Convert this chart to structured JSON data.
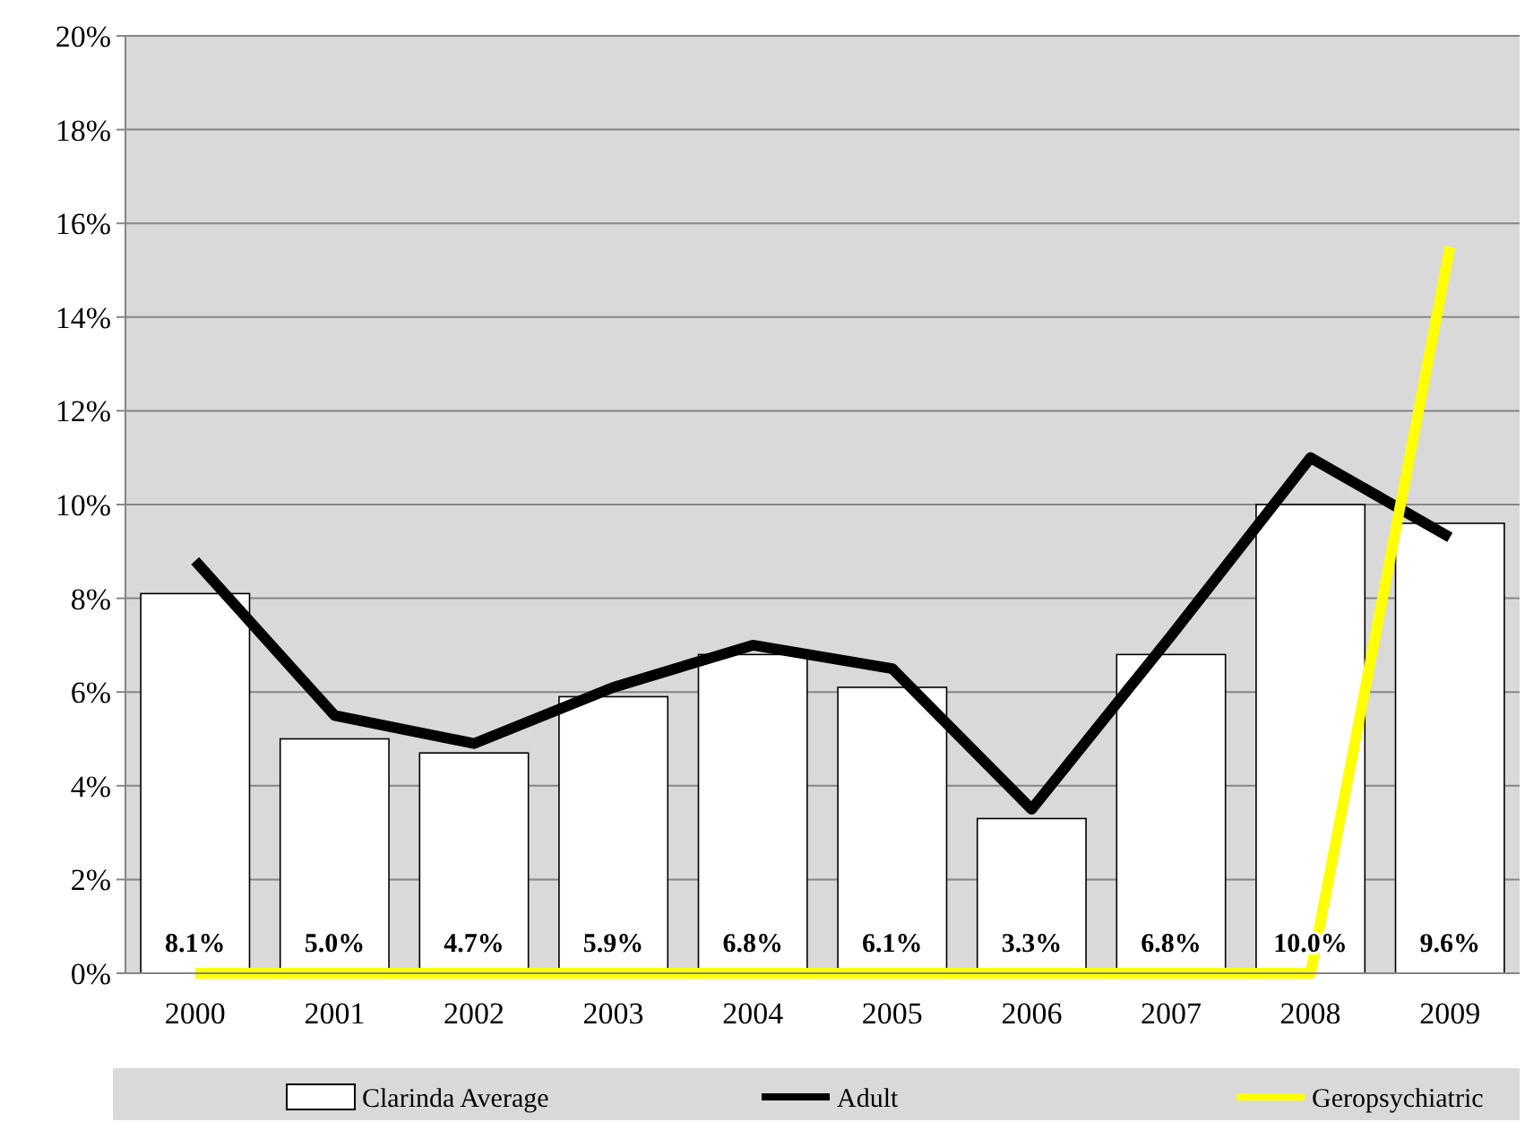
{
  "chart_data": {
    "type": "bar",
    "categories": [
      "2000",
      "2001",
      "2002",
      "2003",
      "2004",
      "2005",
      "2006",
      "2007",
      "2008",
      "2009"
    ],
    "series": [
      {
        "name": "Clarinda Average",
        "color": "#ffffff",
        "values": [
          8.1,
          5.0,
          4.7,
          5.9,
          6.8,
          6.1,
          3.3,
          6.8,
          10.0,
          9.6
        ],
        "value_labels": [
          "8.1%",
          "5.0%",
          "4.7%",
          "5.9%",
          "6.8%",
          "6.1%",
          "3.3%",
          "6.8%",
          "10.0%",
          "9.6%"
        ]
      },
      {
        "name": "Adult",
        "type": "line",
        "color": "#000000",
        "values": [
          8.8,
          5.5,
          4.9,
          6.1,
          7.0,
          6.5,
          3.5,
          7.2,
          11.0,
          9.3
        ]
      },
      {
        "name": "Geropsychiatric",
        "type": "line",
        "color": "#ffff00",
        "values": [
          0,
          0,
          0,
          0,
          0,
          0,
          0,
          0,
          0,
          15.5
        ]
      }
    ],
    "ylim": [
      0,
      20
    ],
    "yticks": [
      {
        "value": 0,
        "label": "0%"
      },
      {
        "value": 2,
        "label": "2%"
      },
      {
        "value": 4,
        "label": "4%"
      },
      {
        "value": 6,
        "label": "6%"
      },
      {
        "value": 8,
        "label": "8%"
      },
      {
        "value": 10,
        "label": "10%"
      },
      {
        "value": 12,
        "label": "12%"
      },
      {
        "value": 14,
        "label": "14%"
      },
      {
        "value": 16,
        "label": "16%"
      },
      {
        "value": 18,
        "label": "18%"
      },
      {
        "value": 20,
        "label": "20%"
      }
    ],
    "grid": "y",
    "legend": "bottom",
    "marker": "none",
    "line_style": "solid"
  }
}
